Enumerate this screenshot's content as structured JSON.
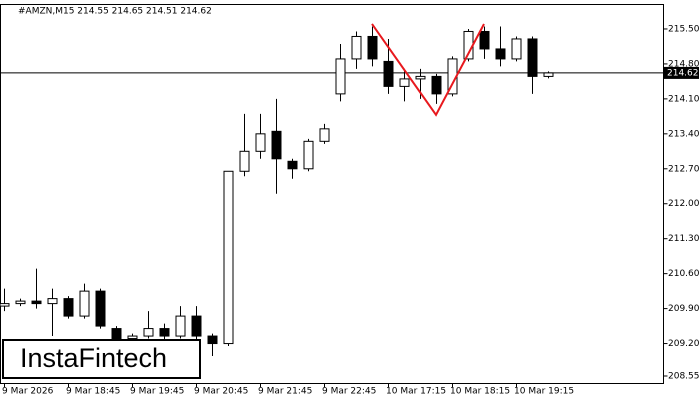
{
  "chart_data": {
    "type": "candlestick",
    "title": "#AMZN,M15  214.55 214.65 214.51 214.62",
    "watermark": "InstaFintech",
    "categories": [
      "9 Mar 2026",
      null,
      null,
      null,
      "9 Mar 18:45",
      null,
      null,
      null,
      "9 Mar 19:45",
      null,
      null,
      null,
      "9 Mar 20:45",
      null,
      null,
      null,
      "9 Mar 21:45",
      null,
      null,
      null,
      "9 Mar 22:45",
      null,
      null,
      null,
      "10 Mar 17:15",
      null,
      null,
      null,
      "10 Mar 18:15",
      null,
      null,
      null,
      "10 Mar 19:15",
      null,
      null
    ],
    "series": [
      {
        "up_color": "#ffffff",
        "down_color": "#000000",
        "edge_color": "#000000",
        "open": [
          209.95,
          210.0,
          210.05,
          210.0,
          210.1,
          209.75,
          210.25,
          209.5,
          209.3,
          209.35,
          209.5,
          209.35,
          209.75,
          209.35,
          209.2,
          212.65,
          213.05,
          213.45,
          212.85,
          212.7,
          213.25,
          214.2,
          214.9,
          215.35,
          214.85,
          214.35,
          214.5,
          214.55,
          214.2,
          214.9,
          215.45,
          215.1,
          214.9,
          215.3,
          214.55
        ],
        "high": [
          210.3,
          210.1,
          210.7,
          210.3,
          210.15,
          210.4,
          210.3,
          209.55,
          209.4,
          209.85,
          209.6,
          209.95,
          209.95,
          209.4,
          212.65,
          213.8,
          213.8,
          214.1,
          212.9,
          213.3,
          213.6,
          215.2,
          215.45,
          215.55,
          215.3,
          214.7,
          214.7,
          214.6,
          214.95,
          215.5,
          215.55,
          215.55,
          215.35,
          215.35,
          214.65
        ],
        "low": [
          209.85,
          209.95,
          209.9,
          209.35,
          209.7,
          209.7,
          209.5,
          209.1,
          209.2,
          209.3,
          209.25,
          209.3,
          209.1,
          208.95,
          209.15,
          212.55,
          212.9,
          212.2,
          212.5,
          212.65,
          213.2,
          214.05,
          214.7,
          214.75,
          214.2,
          214.05,
          214.1,
          214.0,
          214.15,
          214.85,
          214.9,
          214.75,
          214.85,
          214.2,
          214.51
        ],
        "close": [
          210.0,
          210.05,
          210.0,
          210.1,
          209.75,
          210.25,
          209.55,
          209.3,
          209.35,
          209.5,
          209.35,
          209.75,
          209.35,
          209.2,
          212.65,
          213.05,
          213.4,
          212.9,
          212.7,
          213.25,
          213.5,
          214.9,
          215.35,
          214.9,
          214.35,
          214.5,
          214.55,
          214.2,
          214.9,
          215.45,
          215.1,
          214.9,
          215.3,
          214.55,
          214.62
        ]
      }
    ],
    "price_line": 214.62,
    "pattern": {
      "color": "#e8191e",
      "indices": [
        23,
        27,
        30
      ],
      "values": [
        215.6,
        213.78,
        215.6
      ]
    },
    "ylim": [
      208.41,
      215.98
    ],
    "yticks": [
      {
        "value": 215.5,
        "label": "215.50"
      },
      {
        "value": 214.8,
        "label": "214.80"
      },
      {
        "value": 214.1,
        "label": "214.10"
      },
      {
        "value": 213.4,
        "label": "213.40"
      },
      {
        "value": 212.7,
        "label": "212.70"
      },
      {
        "value": 212.0,
        "label": "212.00"
      },
      {
        "value": 211.3,
        "label": "211.30"
      },
      {
        "value": 210.6,
        "label": "210.60"
      },
      {
        "value": 209.9,
        "label": "209.90"
      },
      {
        "value": 209.2,
        "label": "209.20"
      },
      {
        "value": 208.55,
        "label": "208.55"
      }
    ]
  }
}
